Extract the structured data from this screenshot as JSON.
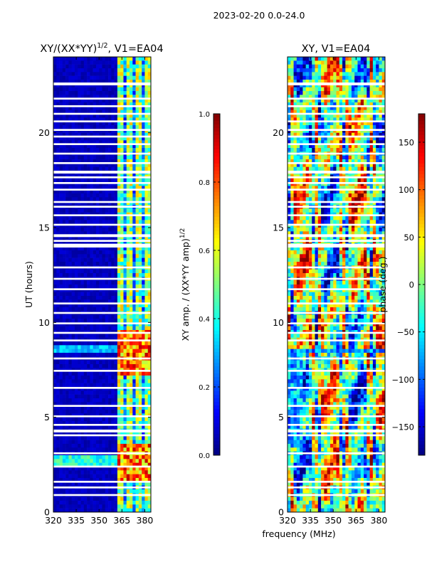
{
  "suptitle": "2023-02-20 0.0-24.0",
  "colors": {
    "text": "#000000",
    "frame": "#000000",
    "background": "#ffffff",
    "cold": "#00007f",
    "hot": "#7f0000"
  },
  "chart_data": [
    {
      "type": "heatmap",
      "title": "XY/(XX*YY)1/2, V1=EA04",
      "title_main": "XY/(XX*YY)",
      "title_sup": "1/2",
      "title_suffix": ", V1=EA04",
      "xlabel": "",
      "ylabel": "UT (hours)",
      "x_range": [
        320,
        384
      ],
      "y_range": [
        0,
        24
      ],
      "x_ticks": [
        320,
        335,
        350,
        365,
        380
      ],
      "x_tick_labels": [
        "320",
        "335",
        "350",
        "365",
        "380"
      ],
      "y_ticks": [
        0,
        5,
        10,
        15,
        20
      ],
      "y_tick_labels": [
        "0",
        "5",
        "10",
        "15",
        "20"
      ],
      "flagged_hours": [
        [
          0.85,
          0.95
        ],
        [
          1.25,
          1.35
        ],
        [
          1.55,
          1.65
        ],
        [
          2.35,
          2.45
        ],
        [
          3.05,
          3.15
        ],
        [
          4.0,
          4.1
        ],
        [
          4.2,
          4.35
        ],
        [
          4.55,
          4.65
        ],
        [
          5.0,
          5.1
        ],
        [
          5.55,
          5.65
        ],
        [
          6.5,
          6.6
        ],
        [
          7.4,
          7.5
        ],
        [
          8.05,
          8.15
        ],
        [
          9.0,
          9.1
        ],
        [
          9.4,
          9.5
        ],
        [
          9.9,
          10.0
        ],
        [
          10.45,
          10.55
        ],
        [
          10.95,
          11.05
        ],
        [
          11.7,
          11.8
        ],
        [
          12.25,
          12.35
        ],
        [
          12.85,
          12.95
        ],
        [
          13.95,
          14.15
        ],
        [
          14.25,
          14.35
        ],
        [
          14.5,
          14.65
        ],
        [
          15.1,
          15.2
        ],
        [
          15.6,
          15.7
        ],
        [
          16.05,
          16.15
        ],
        [
          16.3,
          16.4
        ],
        [
          16.95,
          17.05
        ],
        [
          17.3,
          17.4
        ],
        [
          17.6,
          17.7
        ],
        [
          17.85,
          18.0
        ],
        [
          18.35,
          18.45
        ],
        [
          18.85,
          18.95
        ],
        [
          19.35,
          19.45
        ],
        [
          19.75,
          19.85
        ],
        [
          20.1,
          20.2
        ],
        [
          20.55,
          20.65
        ],
        [
          20.95,
          21.05
        ],
        [
          21.35,
          21.45
        ],
        [
          21.75,
          21.85
        ],
        [
          22.5,
          22.65
        ]
      ],
      "colorbar": {
        "label": "XY amp. / (XX*YY amp)1/2",
        "label_main": "XY amp. / (XX*YY amp)",
        "label_sup": "1/2",
        "range": [
          0.0,
          1.0
        ],
        "ticks": [
          0.0,
          0.2,
          0.4,
          0.6,
          0.8,
          1.0
        ],
        "tick_labels": [
          "0.0",
          "0.2",
          "0.4",
          "0.6",
          "0.8",
          "1.0"
        ]
      }
    },
    {
      "type": "heatmap",
      "title": "XY, V1=EA04",
      "xlabel": "frequency (MHz)",
      "ylabel": "",
      "x_range": [
        320,
        384
      ],
      "y_range": [
        0,
        24
      ],
      "x_ticks": [
        320,
        335,
        350,
        365,
        380
      ],
      "x_tick_labels": [
        "320",
        "335",
        "350",
        "365",
        "380"
      ],
      "y_ticks": [
        0,
        5,
        10,
        15,
        20
      ],
      "y_tick_labels": [
        "0",
        "5",
        "10",
        "15",
        "20"
      ],
      "flagged_hours": [
        [
          0.85,
          0.95
        ],
        [
          1.25,
          1.35
        ],
        [
          1.55,
          1.65
        ],
        [
          2.35,
          2.45
        ],
        [
          3.05,
          3.15
        ],
        [
          4.0,
          4.1
        ],
        [
          4.2,
          4.35
        ],
        [
          4.55,
          4.65
        ],
        [
          5.0,
          5.1
        ],
        [
          5.55,
          5.65
        ],
        [
          6.5,
          6.6
        ],
        [
          7.4,
          7.5
        ],
        [
          8.05,
          8.15
        ],
        [
          9.0,
          9.1
        ],
        [
          9.4,
          9.5
        ],
        [
          9.9,
          10.0
        ],
        [
          10.45,
          10.55
        ],
        [
          10.95,
          11.05
        ],
        [
          11.7,
          11.8
        ],
        [
          12.25,
          12.35
        ],
        [
          12.85,
          12.95
        ],
        [
          13.95,
          14.15
        ],
        [
          14.25,
          14.35
        ],
        [
          14.5,
          14.65
        ],
        [
          15.1,
          15.2
        ],
        [
          15.6,
          15.7
        ],
        [
          16.05,
          16.15
        ],
        [
          16.3,
          16.4
        ],
        [
          16.95,
          17.05
        ],
        [
          17.3,
          17.4
        ],
        [
          17.6,
          17.7
        ],
        [
          17.85,
          18.0
        ],
        [
          18.35,
          18.45
        ],
        [
          18.85,
          18.95
        ],
        [
          19.35,
          19.45
        ],
        [
          19.75,
          19.85
        ],
        [
          20.1,
          20.2
        ],
        [
          20.55,
          20.65
        ],
        [
          20.95,
          21.05
        ],
        [
          21.35,
          21.45
        ],
        [
          21.75,
          21.85
        ],
        [
          22.5,
          22.65
        ]
      ],
      "colorbar": {
        "label": "phase (deg.)",
        "range": [
          -180,
          180
        ],
        "ticks": [
          -150,
          -100,
          -50,
          0,
          50,
          100,
          150
        ],
        "tick_labels": [
          "−150",
          "−100",
          "−50",
          "0",
          "50",
          "100",
          "150"
        ]
      }
    }
  ]
}
